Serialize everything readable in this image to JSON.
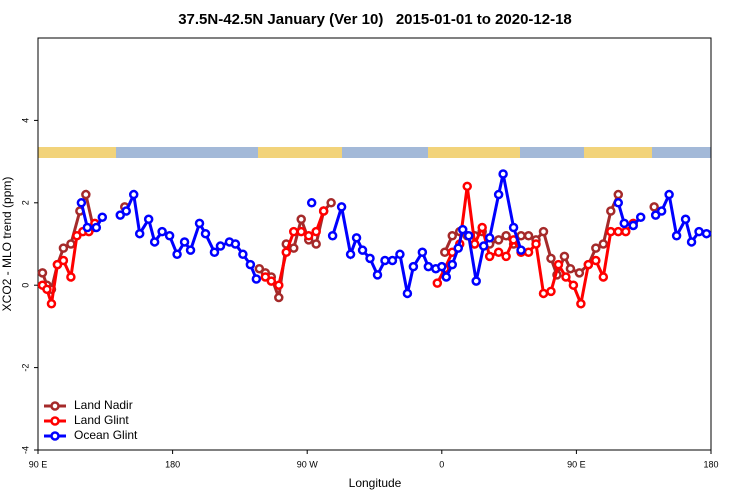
{
  "chart_data": {
    "type": "line",
    "title": "37.5N-42.5N January (Ver 10)   2015-01-01 to 2020-12-18",
    "x_label": "Longitude",
    "y_label": "XCO2 - MLO trend (ppm)",
    "xlim": [
      90,
      540
    ],
    "ylim": [
      -4,
      6
    ],
    "xticks": [
      {
        "value": 90,
        "label": "90 E"
      },
      {
        "value": 180,
        "label": "180"
      },
      {
        "value": 270,
        "label": "90 W"
      },
      {
        "value": 360,
        "label": "0"
      },
      {
        "value": 450,
        "label": "90 E"
      },
      {
        "value": 540,
        "label": "180"
      }
    ],
    "yticks": [
      -4,
      -2,
      0,
      2,
      4
    ],
    "legend": "bottomleft",
    "series": [
      {
        "name": "Land Nadir",
        "color": "#a52a2a",
        "x": [
          93,
          96,
          99,
          103,
          107,
          112,
          118,
          122,
          127,
          135,
          148,
          200,
          238,
          242,
          246,
          251,
          256,
          261,
          266,
          271,
          276,
          281,
          286,
          320,
          362,
          367,
          372,
          377,
          382,
          387,
          392,
          398,
          403,
          408,
          413,
          418,
          423,
          428,
          433,
          437,
          442,
          446,
          452,
          458,
          463,
          468,
          473,
          478,
          490,
          502
        ],
        "values": [
          0.3,
          0.0,
          -0.1,
          0.5,
          0.9,
          1.0,
          1.8,
          2.2,
          1.4,
          null,
          1.9,
          null,
          0.4,
          0.3,
          0.2,
          -0.3,
          1.0,
          0.9,
          1.6,
          1.1,
          1.0,
          1.8,
          2.0,
          null,
          0.8,
          1.2,
          1.3,
          1.2,
          1.2,
          1.3,
          1.0,
          1.1,
          1.2,
          1.0,
          1.2,
          1.2,
          1.1,
          1.3,
          0.65,
          0.25,
          0.7,
          0.4,
          0.3,
          0.5,
          0.9,
          1.0,
          1.8,
          2.2,
          null,
          1.9
        ]
      },
      {
        "name": "Land Glint",
        "color": "#ff0000",
        "x": [
          93,
          96,
          99,
          103,
          107,
          112,
          116,
          120,
          124,
          128,
          200,
          242,
          246,
          251,
          256,
          261,
          266,
          271,
          276,
          281,
          320,
          357,
          362,
          367,
          372,
          377,
          382,
          387,
          392,
          398,
          403,
          408,
          413,
          418,
          423,
          428,
          433,
          438,
          443,
          448,
          453,
          458,
          463,
          468,
          473,
          478,
          483,
          488
        ],
        "values": [
          0.0,
          -0.1,
          -0.45,
          0.5,
          0.6,
          0.2,
          1.2,
          1.3,
          1.3,
          1.5,
          null,
          0.2,
          0.1,
          0.0,
          0.8,
          1.3,
          1.3,
          1.2,
          1.3,
          1.8,
          null,
          0.05,
          0.4,
          0.8,
          1.0,
          2.4,
          1.0,
          1.4,
          0.7,
          0.8,
          0.7,
          1.1,
          0.8,
          0.8,
          1.0,
          -0.2,
          -0.15,
          0.5,
          0.2,
          0.0,
          -0.45,
          0.5,
          0.6,
          0.2,
          1.3,
          1.3,
          1.3,
          1.5
        ]
      },
      {
        "name": "Ocean Glint",
        "color": "#0000ff",
        "x": [
          119,
          123,
          129,
          133,
          139,
          145,
          149,
          154,
          158,
          164,
          168,
          173,
          178,
          183,
          188,
          192,
          198,
          202,
          208,
          212,
          218,
          222,
          227,
          232,
          236,
          255,
          273,
          280,
          287,
          293,
          299,
          303,
          307,
          312,
          317,
          322,
          327,
          332,
          337,
          341,
          347,
          351,
          356,
          360,
          363,
          367,
          371,
          374,
          378,
          383,
          388,
          392,
          398,
          401,
          408,
          413,
          450,
          478,
          482,
          488,
          493,
          497,
          503,
          507,
          512,
          517,
          523,
          527,
          532,
          537
        ],
        "values": [
          2.0,
          1.4,
          1.4,
          1.65,
          null,
          1.7,
          1.8,
          2.2,
          1.25,
          1.6,
          1.05,
          1.3,
          1.2,
          0.75,
          1.05,
          0.85,
          1.5,
          1.25,
          0.8,
          0.95,
          1.05,
          1.0,
          0.75,
          0.5,
          0.15,
          null,
          2.0,
          null,
          1.2,
          1.9,
          0.75,
          1.15,
          0.85,
          0.65,
          0.25,
          0.6,
          0.6,
          0.75,
          -0.2,
          0.45,
          0.8,
          0.45,
          0.4,
          0.45,
          0.2,
          0.5,
          0.9,
          1.35,
          1.2,
          0.1,
          0.95,
          1.15,
          2.2,
          2.7,
          1.4,
          0.85,
          null,
          2.0,
          1.5,
          1.45,
          1.65,
          null,
          1.7,
          1.8,
          2.2,
          1.2,
          1.6,
          1.05,
          1.3,
          1.25
        ]
      }
    ]
  }
}
